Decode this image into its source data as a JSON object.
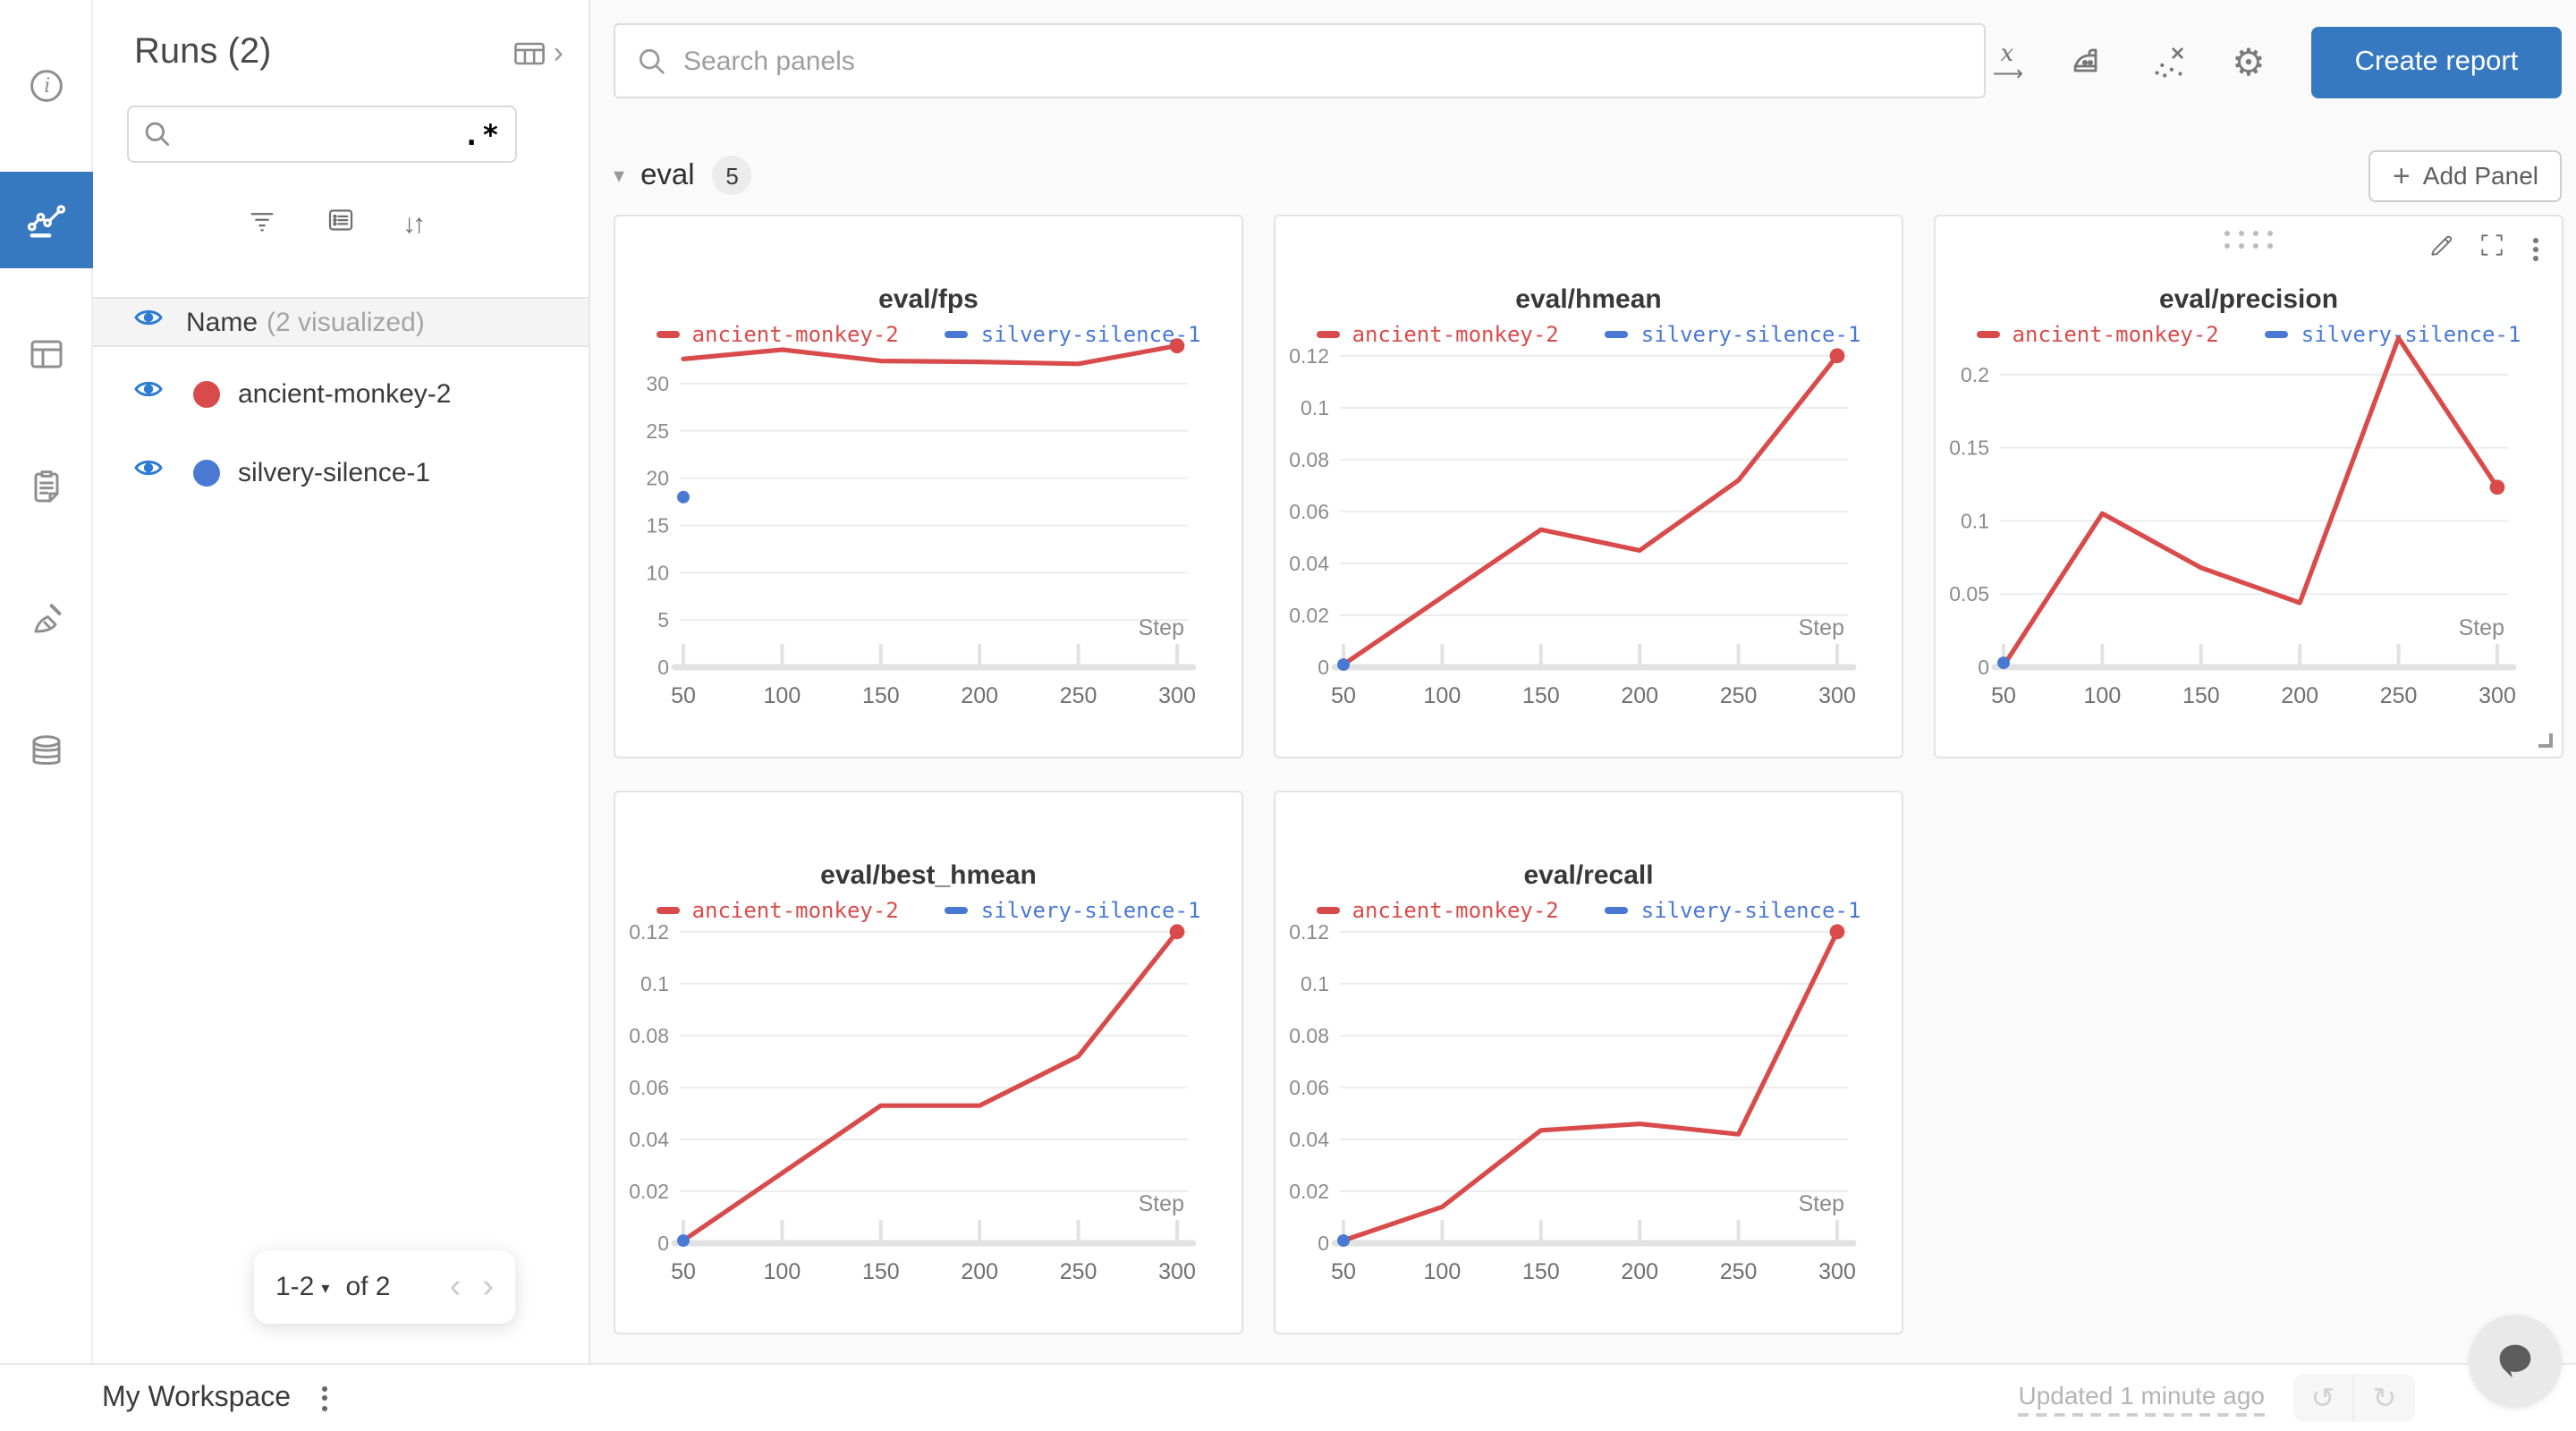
{
  "colors": {
    "accent": "#3779c1",
    "run_red": "#d94b4b",
    "run_blue": "#4a79d4",
    "eye_blue": "#2b7bd4",
    "teal": "#0d9ba4",
    "grid": "#ececec",
    "axis": "#e2e2e2",
    "tick_text": "#8b8b8b"
  },
  "rail": {
    "items": [
      {
        "name": "overview-icon"
      },
      {
        "name": "charts-icon",
        "active": true
      },
      {
        "name": "tables-icon"
      },
      {
        "name": "logs-icon"
      },
      {
        "name": "sweeps-icon"
      },
      {
        "name": "artifacts-icon"
      }
    ]
  },
  "runs_panel": {
    "title": "Runs (2)",
    "search_value": "",
    "regex_label": ".*",
    "header": {
      "label": "Name",
      "note": "(2 visualized)"
    },
    "runs": [
      {
        "name": "ancient-monkey-2",
        "color": "#d94b4b"
      },
      {
        "name": "silvery-silence-1",
        "color": "#4a79d4"
      }
    ],
    "pagination": {
      "range": "1-2",
      "caret": "▾",
      "of_label": "of 2",
      "prev": "‹",
      "next": "›"
    }
  },
  "topbar": {
    "search_placeholder": "Search panels",
    "create_report_label": "Create report"
  },
  "section": {
    "chevron": "▾",
    "name": "eval",
    "count": "5",
    "add_panel_label": "Add Panel",
    "plus": "+"
  },
  "footer": {
    "workspace": "My Workspace",
    "updated": "Updated 1 minute ago",
    "undo": "↺",
    "redo": "↻"
  },
  "icons": {
    "gear": "⚙",
    "sort": "↓↑"
  },
  "chart_data": [
    {
      "type": "line",
      "title": "eval/fps",
      "xlabel": "Step",
      "x": [
        50,
        100,
        150,
        200,
        250,
        300
      ],
      "xtick_labels": [
        "50",
        "100",
        "150",
        "200",
        "250",
        "300"
      ],
      "ylim": [
        0,
        35.2
      ],
      "ytick_values": [
        0,
        5,
        10,
        15,
        20,
        25,
        30
      ],
      "ytick_labels": [
        "0",
        "5",
        "10",
        "15",
        "20",
        "25",
        "30"
      ],
      "series": [
        {
          "name": "ancient-monkey-2",
          "color": "#d94b4b",
          "values": [
            32.6,
            33.6,
            32.4,
            32.3,
            32.1,
            34.0
          ],
          "end_marker": true
        },
        {
          "name": "silvery-silence-1",
          "color": "#4a79d4",
          "values": [
            18,
            null,
            null,
            null,
            null,
            null
          ]
        }
      ],
      "legend_position": "top",
      "grid": true
    },
    {
      "type": "line",
      "title": "eval/hmean",
      "xlabel": "Step",
      "x": [
        50,
        100,
        150,
        200,
        250,
        300
      ],
      "xtick_labels": [
        "50",
        "100",
        "150",
        "200",
        "250",
        "300"
      ],
      "ylim": [
        0,
        0.1282
      ],
      "ytick_values": [
        0,
        0.02,
        0.04,
        0.06,
        0.08,
        0.1,
        0.12
      ],
      "ytick_labels": [
        "0",
        "0.02",
        "0.04",
        "0.06",
        "0.08",
        "0.1",
        "0.12"
      ],
      "series": [
        {
          "name": "ancient-monkey-2",
          "color": "#d94b4b",
          "values": [
            0.001,
            0.027,
            0.053,
            0.045,
            0.072,
            0.12
          ],
          "end_marker": true
        },
        {
          "name": "silvery-silence-1",
          "color": "#4a79d4",
          "values": [
            0.001,
            null,
            null,
            null,
            null,
            null
          ]
        }
      ],
      "legend_position": "top",
      "grid": true
    },
    {
      "type": "line",
      "title": "eval/precision",
      "xlabel": "Step",
      "x": [
        50,
        100,
        150,
        200,
        250,
        300
      ],
      "xtick_labels": [
        "50",
        "100",
        "150",
        "200",
        "250",
        "300"
      ],
      "ylim": [
        0,
        0.2274
      ],
      "ytick_values": [
        0,
        0.05,
        0.1,
        0.15,
        0.2
      ],
      "ytick_labels": [
        "0",
        "0.05",
        "0.1",
        "0.15",
        "0.2"
      ],
      "series": [
        {
          "name": "ancient-monkey-2",
          "color": "#d94b4b",
          "values": [
            0.001,
            0.105,
            0.068,
            0.044,
            0.225,
            0.123
          ],
          "end_marker": true
        },
        {
          "name": "silvery-silence-1",
          "color": "#4a79d4",
          "values": [
            0.003,
            null,
            null,
            null,
            null,
            null
          ]
        }
      ],
      "legend_position": "top",
      "grid": true,
      "hovered": true
    },
    {
      "type": "line",
      "title": "eval/best_hmean",
      "xlabel": "Step",
      "x": [
        50,
        100,
        150,
        200,
        250,
        300
      ],
      "xtick_labels": [
        "50",
        "100",
        "150",
        "200",
        "250",
        "300"
      ],
      "ylim": [
        0,
        0.1282
      ],
      "ytick_values": [
        0,
        0.02,
        0.04,
        0.06,
        0.08,
        0.1,
        0.12
      ],
      "ytick_labels": [
        "0",
        "0.02",
        "0.04",
        "0.06",
        "0.08",
        "0.1",
        "0.12"
      ],
      "series": [
        {
          "name": "ancient-monkey-2",
          "color": "#d94b4b",
          "values": [
            0.001,
            0.027,
            0.053,
            0.053,
            0.072,
            0.12
          ],
          "end_marker": true
        },
        {
          "name": "silvery-silence-1",
          "color": "#4a79d4",
          "values": [
            0.001,
            null,
            null,
            null,
            null,
            null
          ]
        }
      ],
      "legend_position": "top",
      "grid": true
    },
    {
      "type": "line",
      "title": "eval/recall",
      "xlabel": "Step",
      "x": [
        50,
        100,
        150,
        200,
        250,
        300
      ],
      "xtick_labels": [
        "50",
        "100",
        "150",
        "200",
        "250",
        "300"
      ],
      "ylim": [
        0,
        0.1282
      ],
      "ytick_values": [
        0,
        0.02,
        0.04,
        0.06,
        0.08,
        0.1,
        0.12
      ],
      "ytick_labels": [
        "0",
        "0.02",
        "0.04",
        "0.06",
        "0.08",
        "0.1",
        "0.12"
      ],
      "series": [
        {
          "name": "ancient-monkey-2",
          "color": "#d94b4b",
          "values": [
            0.001,
            0.014,
            0.0435,
            0.046,
            0.042,
            0.12
          ],
          "end_marker": true
        },
        {
          "name": "silvery-silence-1",
          "color": "#4a79d4",
          "values": [
            0.001,
            null,
            null,
            null,
            null,
            null
          ]
        }
      ],
      "legend_position": "top",
      "grid": true
    }
  ]
}
